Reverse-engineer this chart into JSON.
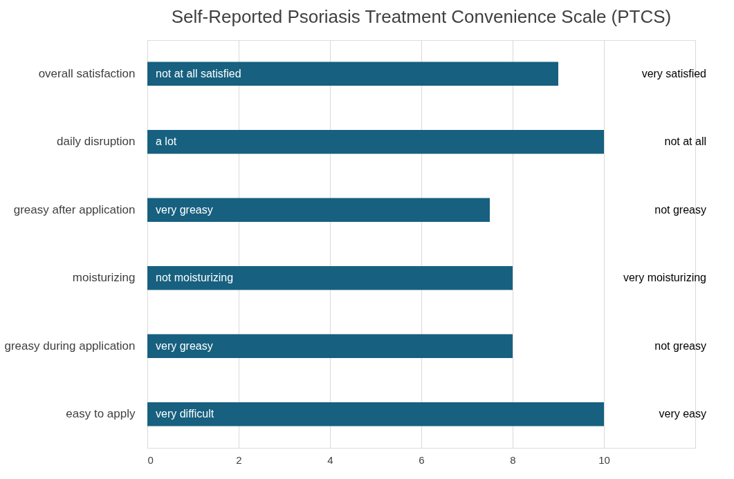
{
  "chart_data": {
    "type": "bar",
    "orientation": "horizontal",
    "title": "Self-Reported Psoriasis Treatment Convenience Scale (PTCS)",
    "categories": [
      "overall satisfaction",
      "daily disruption",
      "greasy after application",
      "moisturizing",
      "greasy during application",
      "easy to apply"
    ],
    "values": [
      9,
      10,
      7.5,
      8,
      8,
      10
    ],
    "color": "#17607f",
    "xlim": [
      0,
      12
    ],
    "xticks": [
      0,
      2,
      4,
      6,
      8,
      10,
      {
        "value": 12,
        "label": null
      }
    ],
    "grid": "x",
    "annotations": [
      "not at all satisfied",
      "very satisfied",
      "a lot",
      "not at all",
      "very greasy",
      "not greasy",
      "not moisturizing",
      "very moisturizing",
      "very greasy",
      "not greasy",
      "very difficult",
      "very easy"
    ]
  }
}
